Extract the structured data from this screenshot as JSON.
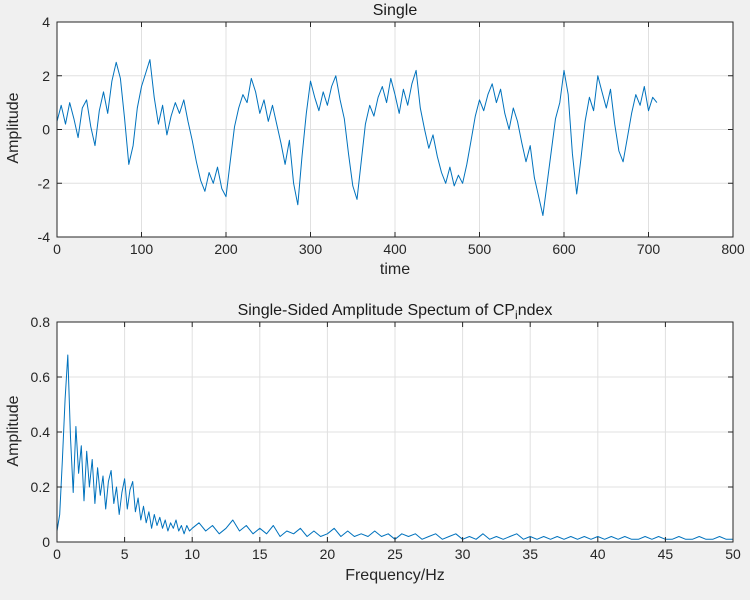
{
  "colors": {
    "figure_background": "#f0f0f0",
    "plot_background": "#ffffff",
    "line": "#0072BD",
    "axis": "#262626",
    "grid": "#e0e0e0"
  },
  "chart_data": [
    {
      "type": "line",
      "name": "signal",
      "title": "Single",
      "xlabel": "time",
      "ylabel": "Amplitude",
      "xlim": [
        0,
        800
      ],
      "ylim": [
        -4,
        4
      ],
      "xticks": [
        0,
        100,
        200,
        300,
        400,
        500,
        600,
        700,
        800
      ],
      "yticks": [
        -4,
        -2,
        0,
        2,
        4
      ],
      "grid": true,
      "legend": "none",
      "line_color": "#0072BD",
      "axis_color": "#262626",
      "grid_color": "#e0e0e0",
      "x_start": 0,
      "x_step": 5,
      "y": [
        0.3,
        0.9,
        0.2,
        1.0,
        0.4,
        -0.3,
        0.8,
        1.1,
        0.1,
        -0.6,
        0.7,
        1.4,
        0.6,
        1.8,
        2.5,
        1.9,
        0.4,
        -1.3,
        -0.6,
        0.8,
        1.6,
        2.1,
        2.6,
        1.2,
        0.2,
        0.9,
        -0.2,
        0.5,
        1.0,
        0.6,
        1.1,
        0.3,
        -0.4,
        -1.2,
        -1.9,
        -2.3,
        -1.6,
        -2.0,
        -1.4,
        -2.2,
        -2.5,
        -1.2,
        0.1,
        0.8,
        1.3,
        1.0,
        1.9,
        1.4,
        0.6,
        1.1,
        0.3,
        0.9,
        0.2,
        -0.5,
        -1.3,
        -0.4,
        -2.0,
        -2.8,
        -1.0,
        0.6,
        1.8,
        1.2,
        0.7,
        1.4,
        0.9,
        1.6,
        2.0,
        1.1,
        0.4,
        -0.9,
        -2.1,
        -2.6,
        -1.2,
        0.2,
        0.9,
        0.5,
        1.2,
        1.6,
        1.0,
        1.9,
        1.3,
        0.6,
        1.5,
        0.9,
        1.7,
        2.2,
        0.8,
        0.0,
        -0.7,
        -0.2,
        -1.0,
        -1.6,
        -2.0,
        -1.4,
        -2.1,
        -1.7,
        -2.0,
        -1.3,
        -0.4,
        0.5,
        1.1,
        0.7,
        1.3,
        1.7,
        1.0,
        1.5,
        0.6,
        0.0,
        0.8,
        0.3,
        -0.5,
        -1.2,
        -0.6,
        -1.8,
        -2.5,
        -3.2,
        -2.0,
        -0.8,
        0.4,
        1.0,
        2.2,
        1.3,
        -0.9,
        -2.4,
        -1.1,
        0.3,
        1.2,
        0.7,
        2.0,
        1.4,
        0.8,
        1.5,
        0.2,
        -0.8,
        -1.2,
        -0.3,
        0.6,
        1.3,
        0.9,
        1.6,
        0.7,
        1.2,
        1.0
      ]
    },
    {
      "type": "line",
      "name": "spectrum",
      "title_parts": {
        "prefix": "Single-Sided Amplitude Spectum of CP",
        "sub": "i",
        "suffix": "ndex"
      },
      "xlabel": "Frequency/Hz",
      "ylabel": "Amplitude",
      "xlim": [
        0,
        50
      ],
      "ylim": [
        0,
        0.8
      ],
      "xticks": [
        0,
        5,
        10,
        15,
        20,
        25,
        30,
        35,
        40,
        45,
        50
      ],
      "yticks": [
        0,
        0.2,
        0.4,
        0.6,
        0.8
      ],
      "grid": true,
      "legend": "none",
      "line_color": "#0072BD",
      "axis_color": "#262626",
      "grid_color": "#e0e0e0",
      "x": [
        0,
        0.2,
        0.4,
        0.6,
        0.8,
        1,
        1.2,
        1.4,
        1.6,
        1.8,
        2,
        2.2,
        2.4,
        2.6,
        2.8,
        3,
        3.2,
        3.4,
        3.6,
        3.8,
        4,
        4.2,
        4.4,
        4.6,
        4.8,
        5,
        5.2,
        5.4,
        5.6,
        5.8,
        6,
        6.2,
        6.4,
        6.6,
        6.8,
        7,
        7.2,
        7.4,
        7.6,
        7.8,
        8,
        8.2,
        8.4,
        8.6,
        8.8,
        9,
        9.2,
        9.4,
        9.6,
        9.8,
        10,
        10.5,
        11,
        11.5,
        12,
        12.5,
        13,
        13.5,
        14,
        14.5,
        15,
        15.5,
        16,
        16.5,
        17,
        17.5,
        18,
        18.5,
        19,
        19.5,
        20,
        20.5,
        21,
        21.5,
        22,
        22.5,
        23,
        23.5,
        24,
        24.5,
        25,
        25.5,
        26,
        26.5,
        27,
        27.5,
        28,
        28.5,
        29,
        29.5,
        30,
        30.5,
        31,
        31.5,
        32,
        32.5,
        33,
        33.5,
        34,
        34.5,
        35,
        35.5,
        36,
        36.5,
        37,
        37.5,
        38,
        38.5,
        39,
        39.5,
        40,
        40.5,
        41,
        41.5,
        42,
        42.5,
        43,
        43.5,
        44,
        44.5,
        45,
        45.5,
        46,
        46.5,
        47,
        47.5,
        48,
        48.5,
        49,
        49.5,
        50
      ],
      "y": [
        0.04,
        0.1,
        0.3,
        0.52,
        0.68,
        0.38,
        0.18,
        0.42,
        0.25,
        0.35,
        0.15,
        0.33,
        0.2,
        0.3,
        0.14,
        0.27,
        0.17,
        0.24,
        0.12,
        0.22,
        0.26,
        0.14,
        0.2,
        0.1,
        0.18,
        0.23,
        0.12,
        0.19,
        0.22,
        0.11,
        0.16,
        0.08,
        0.13,
        0.07,
        0.11,
        0.05,
        0.1,
        0.06,
        0.09,
        0.05,
        0.08,
        0.04,
        0.07,
        0.05,
        0.08,
        0.04,
        0.06,
        0.03,
        0.06,
        0.04,
        0.05,
        0.07,
        0.04,
        0.06,
        0.03,
        0.05,
        0.08,
        0.04,
        0.06,
        0.03,
        0.05,
        0.03,
        0.06,
        0.02,
        0.04,
        0.03,
        0.05,
        0.02,
        0.04,
        0.02,
        0.03,
        0.05,
        0.02,
        0.04,
        0.02,
        0.03,
        0.02,
        0.04,
        0.02,
        0.03,
        0.01,
        0.03,
        0.02,
        0.03,
        0.01,
        0.02,
        0.03,
        0.01,
        0.02,
        0.03,
        0.01,
        0.02,
        0.01,
        0.03,
        0.01,
        0.02,
        0.01,
        0.02,
        0.03,
        0.01,
        0.02,
        0.01,
        0.02,
        0.01,
        0.02,
        0.01,
        0.02,
        0.01,
        0.02,
        0.01,
        0.02,
        0.01,
        0.02,
        0.01,
        0.02,
        0.01,
        0.01,
        0.02,
        0.01,
        0.02,
        0.01,
        0.01,
        0.02,
        0.01,
        0.01,
        0.02,
        0.01,
        0.01,
        0.02,
        0.01,
        0.01
      ]
    }
  ]
}
